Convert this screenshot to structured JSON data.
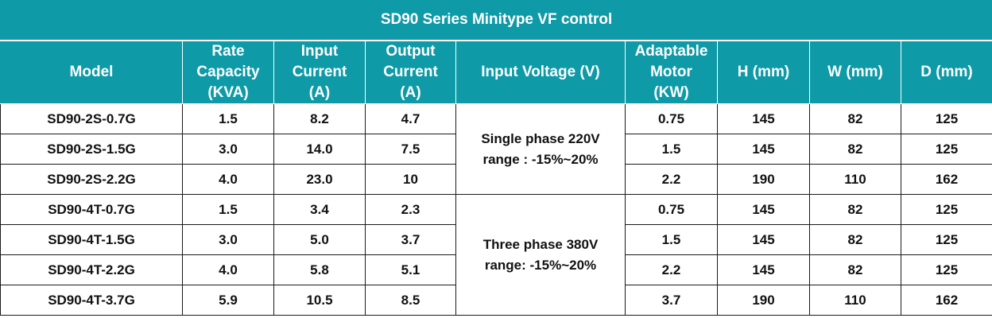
{
  "title": "SD90  Series Minitype VF control",
  "columns": [
    [
      "Model"
    ],
    [
      "Rate",
      "Capacity",
      "(KVA)"
    ],
    [
      "Input",
      "Current",
      "(A)"
    ],
    [
      "Output",
      "Current",
      "(A)"
    ],
    [
      "Input Voltage (V)"
    ],
    [
      "Adaptable",
      "Motor",
      "(KW)"
    ],
    [
      "H (mm)"
    ],
    [
      "W (mm)"
    ],
    [
      "D (mm)"
    ]
  ],
  "voltage_groups": [
    {
      "line1": "Single phase 220V",
      "line2": "range : -15%~20%"
    },
    {
      "line1": "Three phase 380V",
      "line2": "range: -15%~20%"
    }
  ],
  "rows": [
    {
      "model": "SD90-2S-0.7G",
      "capacity": "1.5",
      "input_current": "8.2",
      "output_current": "4.7",
      "motor": "0.75",
      "h": "145",
      "w": "82",
      "d": "125"
    },
    {
      "model": "SD90-2S-1.5G",
      "capacity": "3.0",
      "input_current": "14.0",
      "output_current": "7.5",
      "motor": "1.5",
      "h": "145",
      "w": "82",
      "d": "125"
    },
    {
      "model": "SD90-2S-2.2G",
      "capacity": "4.0",
      "input_current": "23.0",
      "output_current": "10",
      "motor": "2.2",
      "h": "190",
      "w": "110",
      "d": "162"
    },
    {
      "model": "SD90-4T-0.7G",
      "capacity": "1.5",
      "input_current": "3.4",
      "output_current": "2.3",
      "motor": "0.75",
      "h": "145",
      "w": "82",
      "d": "125"
    },
    {
      "model": "SD90-4T-1.5G",
      "capacity": "3.0",
      "input_current": "5.0",
      "output_current": "3.7",
      "motor": "1.5",
      "h": "145",
      "w": "82",
      "d": "125"
    },
    {
      "model": "SD90-4T-2.2G",
      "capacity": "4.0",
      "input_current": "5.8",
      "output_current": "5.1",
      "motor": "2.2",
      "h": "145",
      "w": "82",
      "d": "125"
    },
    {
      "model": "SD90-4T-3.7G",
      "capacity": "5.9",
      "input_current": "10.5",
      "output_current": "8.5",
      "motor": "3.7",
      "h": "190",
      "w": "110",
      "d": "162"
    }
  ],
  "colors": {
    "header_bg": "#0e9aa7",
    "header_text": "#ffffff",
    "body_text": "#111111",
    "grid": "#1a1a1a"
  }
}
